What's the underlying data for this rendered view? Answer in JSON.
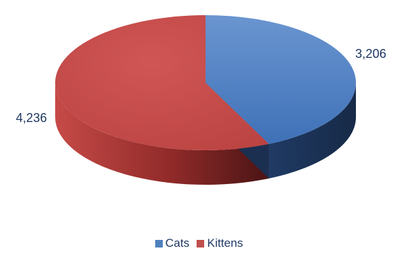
{
  "chart_data": {
    "type": "pie",
    "categories": [
      "Cats",
      "Kittens"
    ],
    "values": [
      3206,
      4236
    ],
    "data_labels": [
      "3,206",
      "4,236"
    ],
    "colors": [
      "#4f81bd",
      "#c0504d"
    ],
    "legend_position": "bottom",
    "style": "3d"
  }
}
